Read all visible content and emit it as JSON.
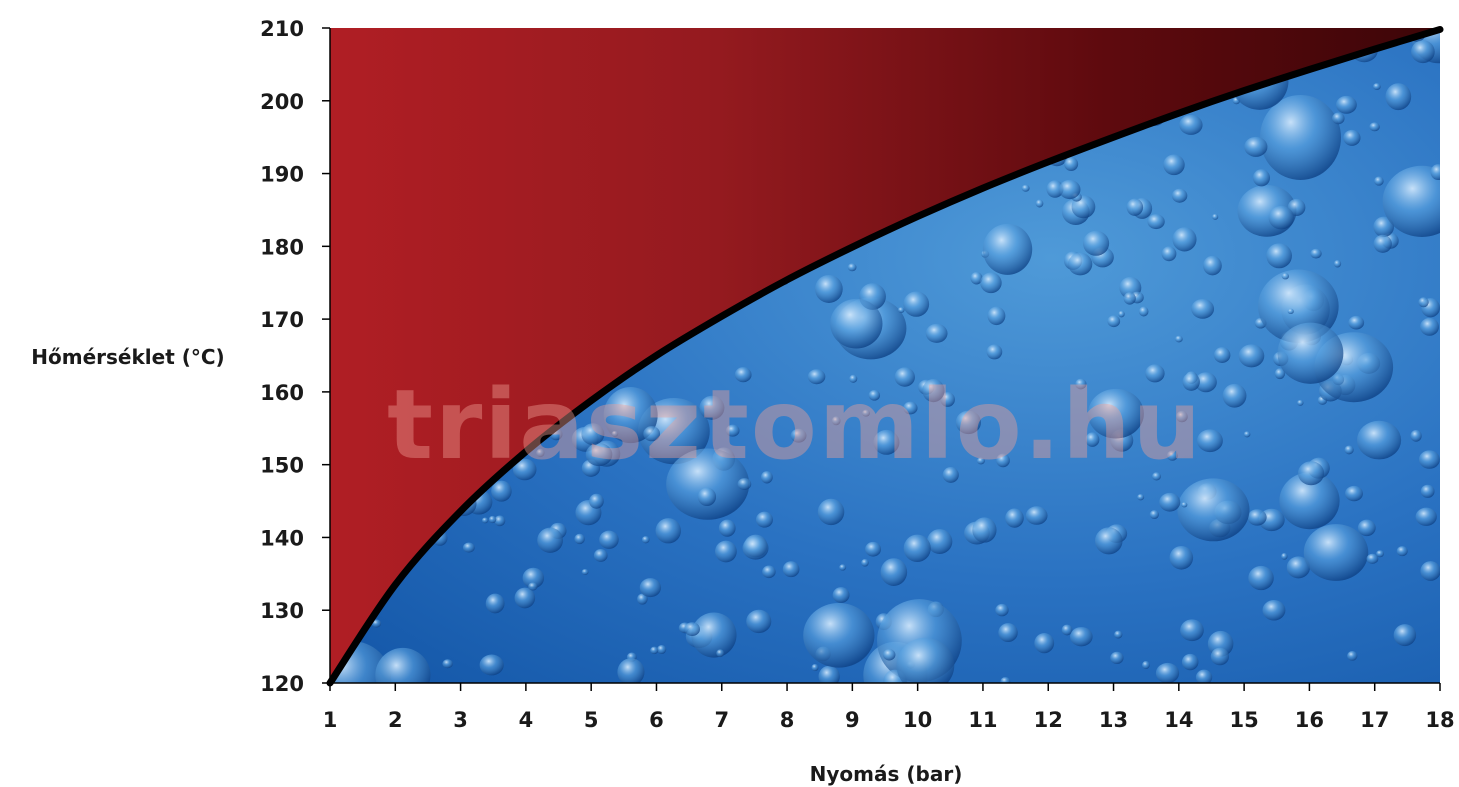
{
  "chart_data": {
    "type": "area",
    "xlabel": "Nyomás (bar)",
    "ylabel": "Hőmérséklet (°C)",
    "xlim": [
      1,
      18
    ],
    "ylim": [
      120,
      210
    ],
    "x_ticks": [
      1,
      2,
      3,
      4,
      5,
      6,
      7,
      8,
      9,
      10,
      11,
      12,
      13,
      14,
      15,
      16,
      17,
      18
    ],
    "y_ticks": [
      120,
      130,
      140,
      150,
      160,
      170,
      180,
      190,
      200,
      210
    ],
    "series": [
      {
        "x": [
          1,
          2,
          3,
          4,
          5,
          6,
          7,
          8,
          9,
          10,
          11,
          12,
          13,
          14,
          15,
          16,
          17,
          18
        ],
        "y": [
          120,
          133.5,
          143.6,
          151.8,
          158.8,
          165,
          170.4,
          175.4,
          179.9,
          184.1,
          188,
          191.6,
          195,
          198.3,
          201.4,
          204.3,
          207.1,
          209.8
        ]
      }
    ],
    "grid": false,
    "watermark": "triasztomlo.hu",
    "colors": {
      "above_curve_light": "#b01e24",
      "above_curve_dark": "#3d0508",
      "below_curve_light": "#4f9ad8",
      "below_curve_dark": "#1457a8",
      "curve": "#000000"
    }
  }
}
